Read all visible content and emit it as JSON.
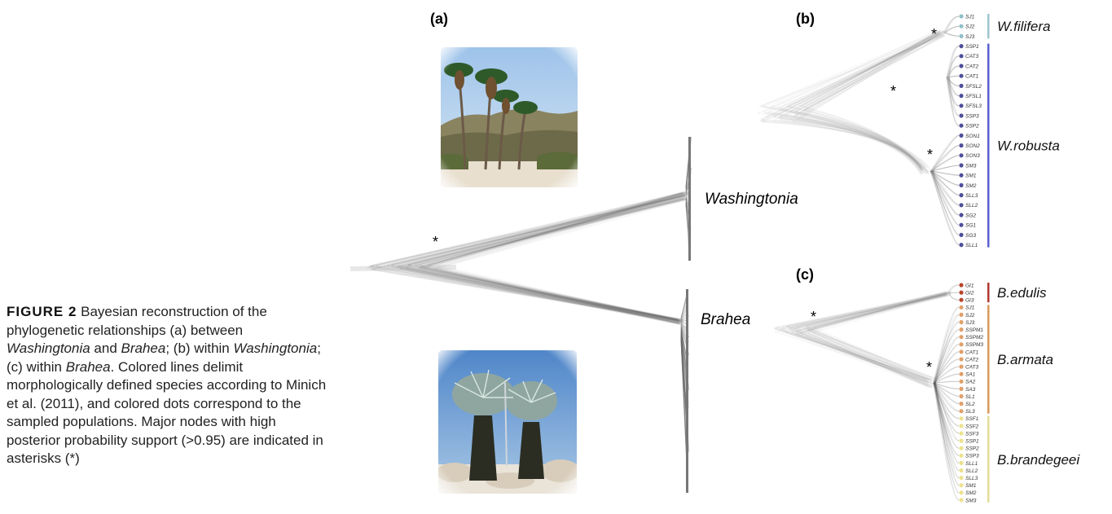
{
  "caption": {
    "fig_label": "FIGURE 2",
    "seg1": " Bayesian reconstruction of the phylogenetic relationships (a) between ",
    "genus1": "Washingtonia",
    "seg2": " and ",
    "genus2": "Brahea",
    "seg3": "; (b) within ",
    "genus3": "Washingtonia",
    "seg4": "; (c) within ",
    "genus4": "Brahea",
    "seg5": ". Colored lines delimit morphologically defined species according to Minich et al. (2011), and colored dots correspond to the sampled populations. Major nodes with high posterior probability support (>0.95) are indicated in asterisks (*)"
  },
  "panels": {
    "a": {
      "label": "(a)",
      "clade_top": "Washingtonia",
      "clade_bottom": "Brahea",
      "support": "*"
    },
    "b": {
      "label": "(b)",
      "support_marks": [
        "*",
        "*",
        "*"
      ],
      "species": [
        {
          "name": "W.filifera",
          "color": "#9cc7cf",
          "dot": "#8fbfc8"
        },
        {
          "name": "W.robusta",
          "color": "#5b5fcf",
          "dot": "#4e4f9a"
        }
      ],
      "tips": [
        "SJ1",
        "SJ2",
        "SJ3",
        "SSP1",
        "CAT3",
        "CAT2",
        "CAT1",
        "SFSL2",
        "SFSL1",
        "SFSL3",
        "SSP3",
        "SSP2",
        "SON1",
        "SON2",
        "SON3",
        "SM3",
        "SM1",
        "SM2",
        "SLL3",
        "SLL2",
        "SG2",
        "SG1",
        "SG3",
        "SLL1"
      ],
      "tip_species": [
        0,
        0,
        0,
        1,
        1,
        1,
        1,
        1,
        1,
        1,
        1,
        1,
        1,
        1,
        1,
        1,
        1,
        1,
        1,
        1,
        1,
        1,
        1,
        1
      ]
    },
    "c": {
      "label": "(c)",
      "support_marks": [
        "*",
        "*"
      ],
      "species": [
        {
          "name": "B.edulis",
          "color": "#b23a32",
          "dot": "#b8452c"
        },
        {
          "name": "B.armata",
          "color": "#d99a5a",
          "dot": "#e0a06a"
        },
        {
          "name": "B.brandegeei",
          "color": "#e4dc98",
          "dot": "#ece28e"
        }
      ],
      "tips": [
        "GI1",
        "GI2",
        "GI3",
        "SJ1",
        "SJ2",
        "SJ3",
        "SSPM1",
        "SSPM2",
        "SSPM3",
        "CAT1",
        "CAT2",
        "CAT3",
        "SA1",
        "SA2",
        "SA3",
        "SL1",
        "SL2",
        "SL3",
        "SSF1",
        "SSF2",
        "SSF3",
        "SSP1",
        "SSP2",
        "SSP3",
        "SLL1",
        "SLL2",
        "SLL3",
        "SM1",
        "SM2",
        "SM3"
      ],
      "tip_species": [
        0,
        0,
        0,
        1,
        1,
        1,
        1,
        1,
        1,
        1,
        1,
        1,
        1,
        1,
        1,
        1,
        1,
        1,
        2,
        2,
        2,
        2,
        2,
        2,
        2,
        2,
        2,
        2,
        2,
        2
      ]
    }
  },
  "photos": [
    {
      "subject": "Washingtonia palms photograph"
    },
    {
      "subject": "Brahea palms photograph"
    }
  ]
}
